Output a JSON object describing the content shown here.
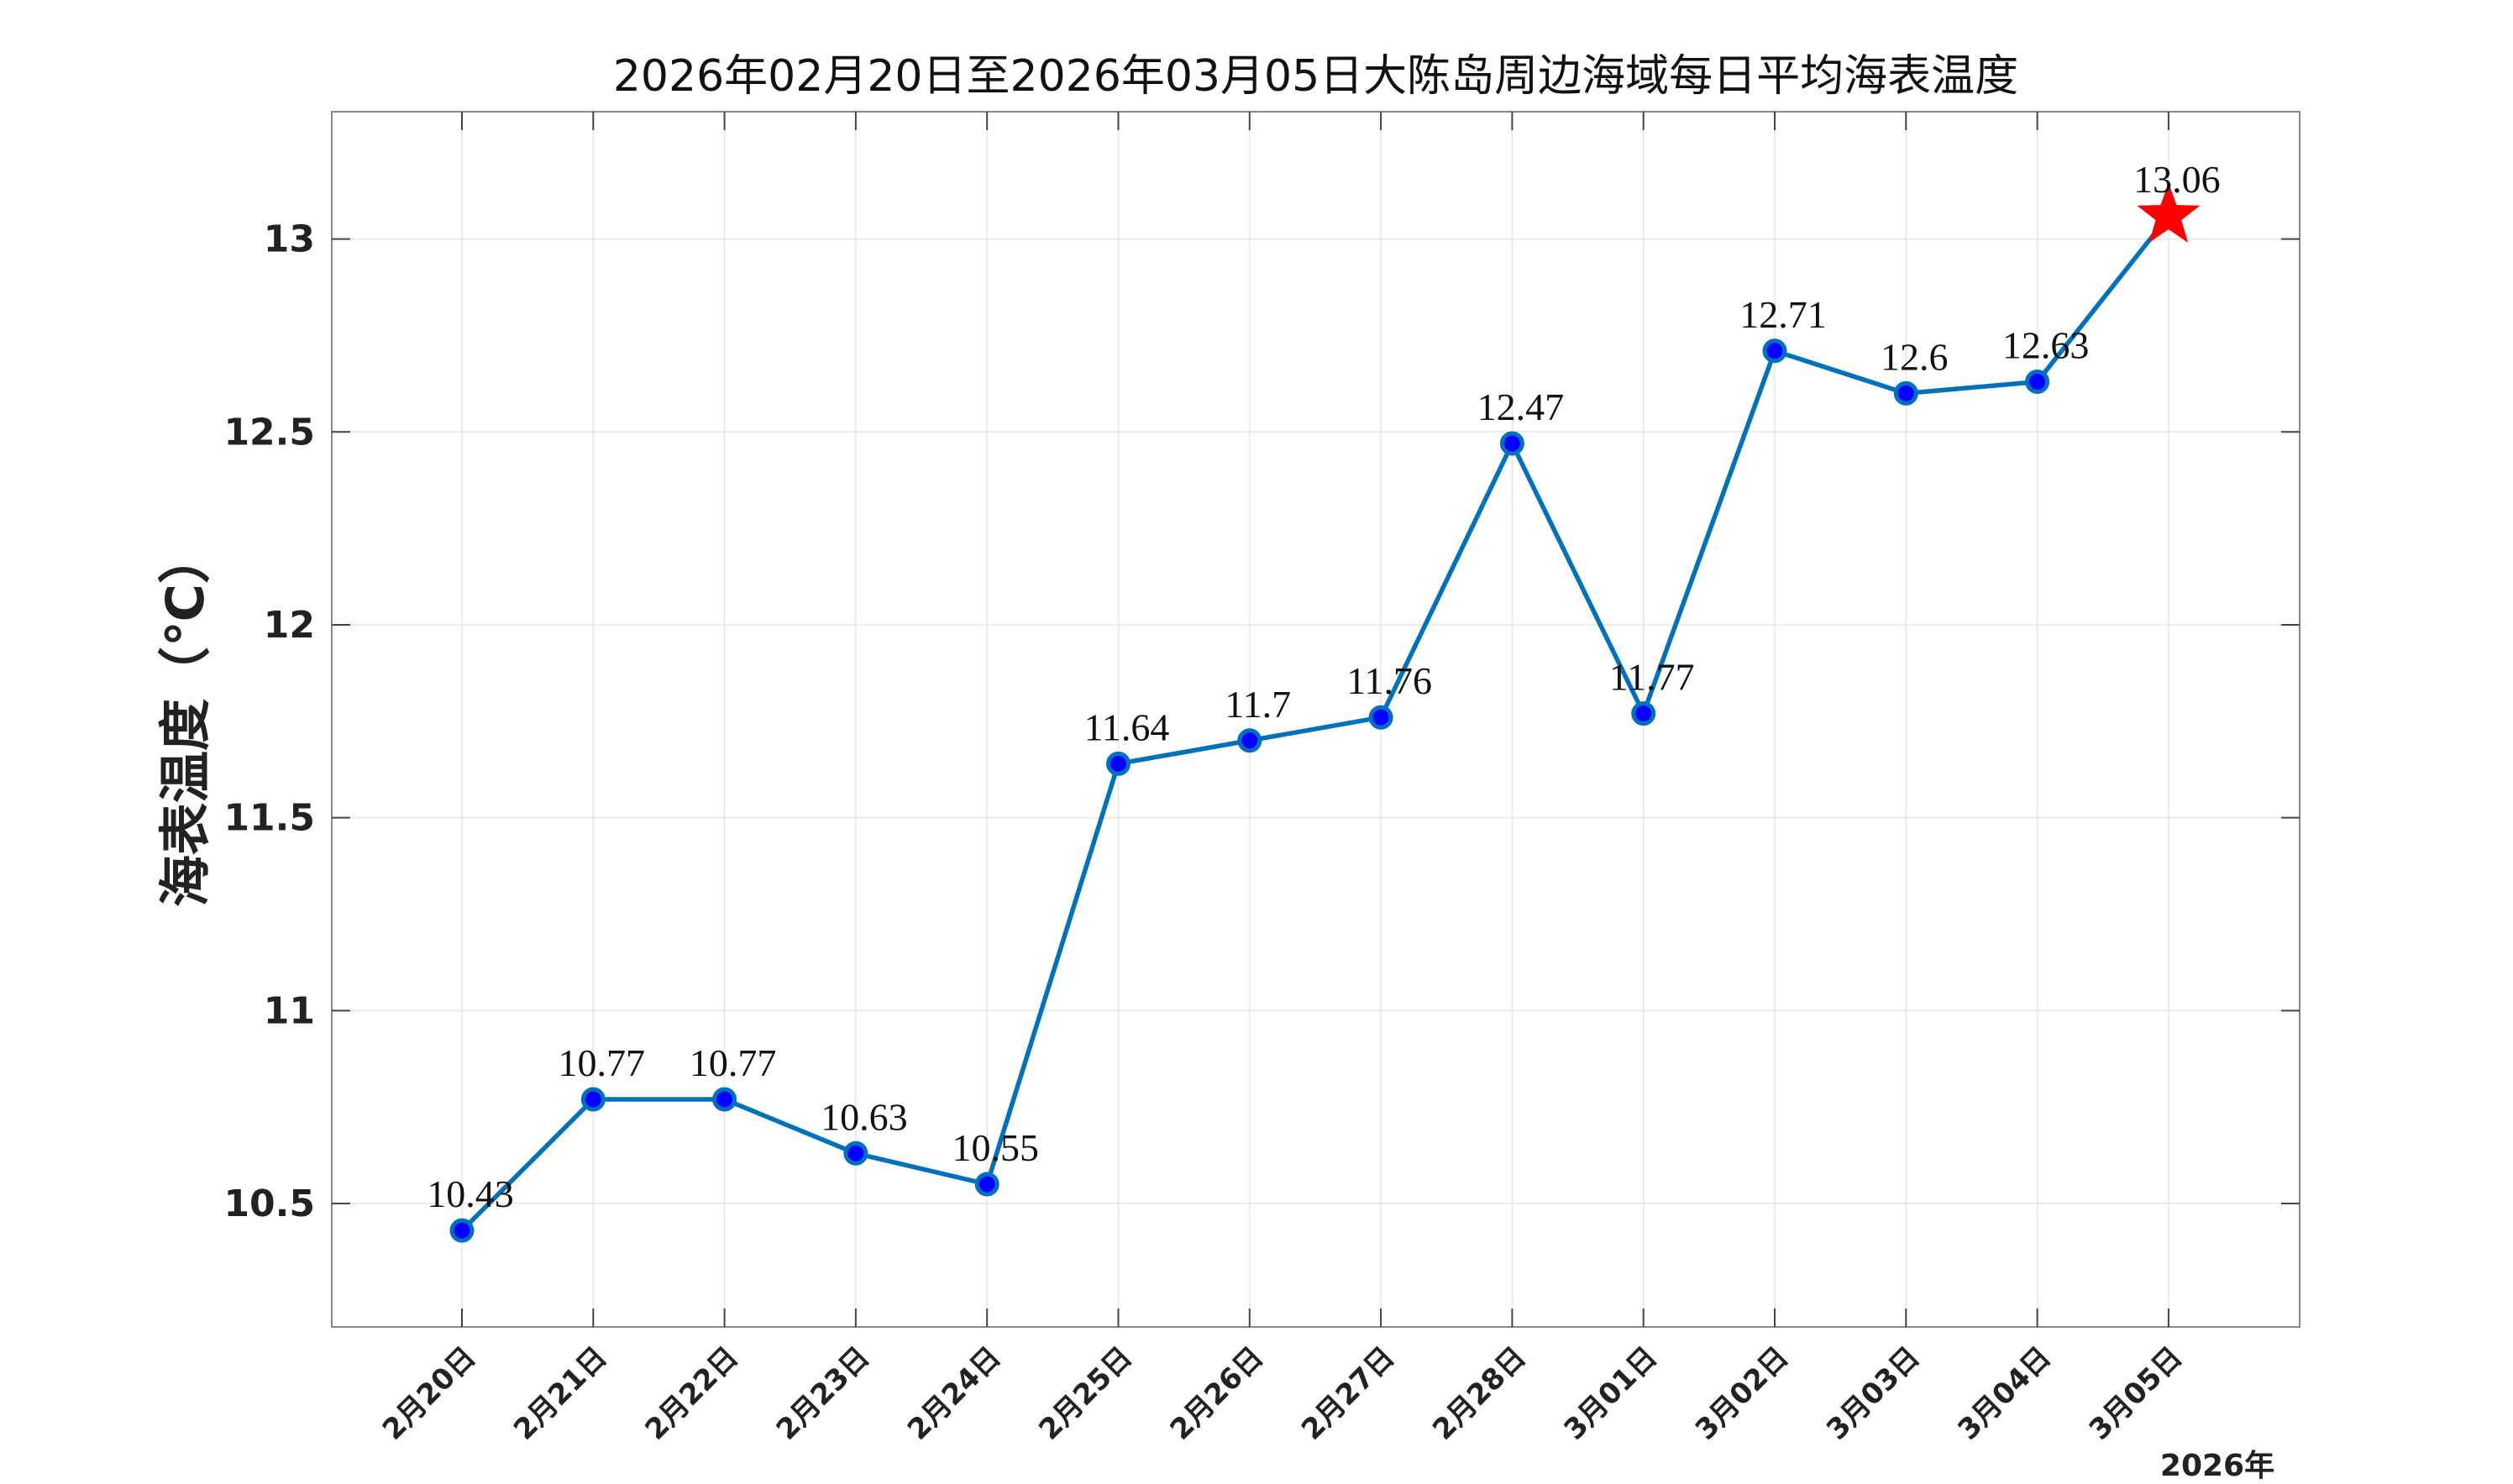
{
  "chart_data": {
    "type": "line",
    "title": "2026年02月20日至2026年03月05日大陈岛周边海域每日平均海表温度",
    "xlabel": "",
    "ylabel": "海表温度（℃）",
    "year_label": "2026年",
    "categories": [
      "2月20日",
      "2月21日",
      "2月22日",
      "2月23日",
      "2月24日",
      "2月25日",
      "2月26日",
      "2月27日",
      "2月28日",
      "3月01日",
      "3月02日",
      "3月03日",
      "3月04日",
      "3月05日"
    ],
    "values": [
      10.43,
      10.77,
      10.77,
      10.63,
      10.55,
      11.64,
      11.7,
      11.76,
      12.47,
      11.77,
      12.71,
      12.6,
      12.63,
      13.06
    ],
    "data_labels": [
      "10.43",
      "10.77",
      "10.77",
      "10.63",
      "10.55",
      "11.64",
      "11.7",
      "11.76",
      "12.47",
      "11.77",
      "12.71",
      "12.6",
      "12.63",
      "13.06"
    ],
    "ylim": [
      10.18,
      13.33
    ],
    "yticks": [
      10.5,
      11,
      11.5,
      12,
      12.5,
      13
    ],
    "ytick_labels": [
      "10.5",
      "11",
      "11.5",
      "12",
      "12.5",
      "13"
    ],
    "grid": true,
    "legend": "none",
    "colors": {
      "line": "#0072BD",
      "marker_fill": "#0000FF",
      "marker_edge": "#0072BD",
      "last_marker": "#FF0000",
      "grid": "#e6e6e6",
      "axes": "#888888"
    },
    "last_marker_shape": "star"
  }
}
